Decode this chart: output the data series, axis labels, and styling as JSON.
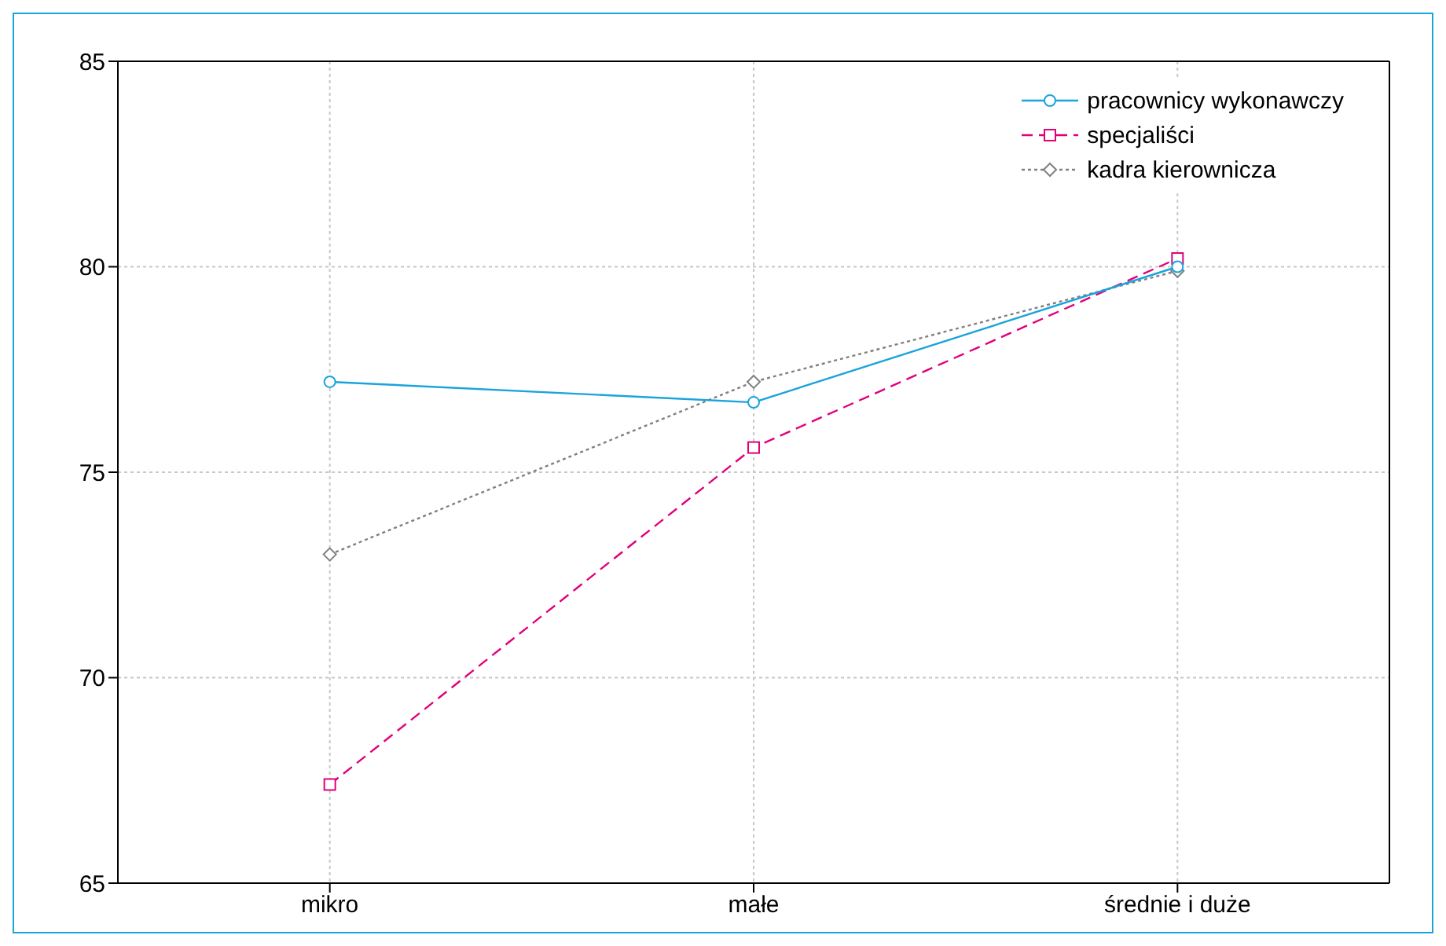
{
  "chart_data": {
    "type": "line",
    "categories": [
      "mikro",
      "małe",
      "średnie i duże"
    ],
    "series": [
      {
        "name": "pracownicy wykonawczy",
        "color": "#1aa3dc",
        "values": [
          77.2,
          76.7,
          80.0
        ],
        "marker": "circle",
        "line_style": "solid"
      },
      {
        "name": "specjaliści",
        "color": "#e0007a",
        "values": [
          67.4,
          75.6,
          80.2
        ],
        "marker": "square",
        "line_style": "dashed"
      },
      {
        "name": "kadra kierownicza",
        "color": "#808080",
        "values": [
          73.0,
          77.2,
          79.9
        ],
        "marker": "diamond",
        "line_style": "dotted"
      }
    ],
    "ylim": [
      65,
      85
    ],
    "yticks": [
      65,
      70,
      75,
      80,
      85
    ],
    "grid": true,
    "legend": "top right"
  }
}
